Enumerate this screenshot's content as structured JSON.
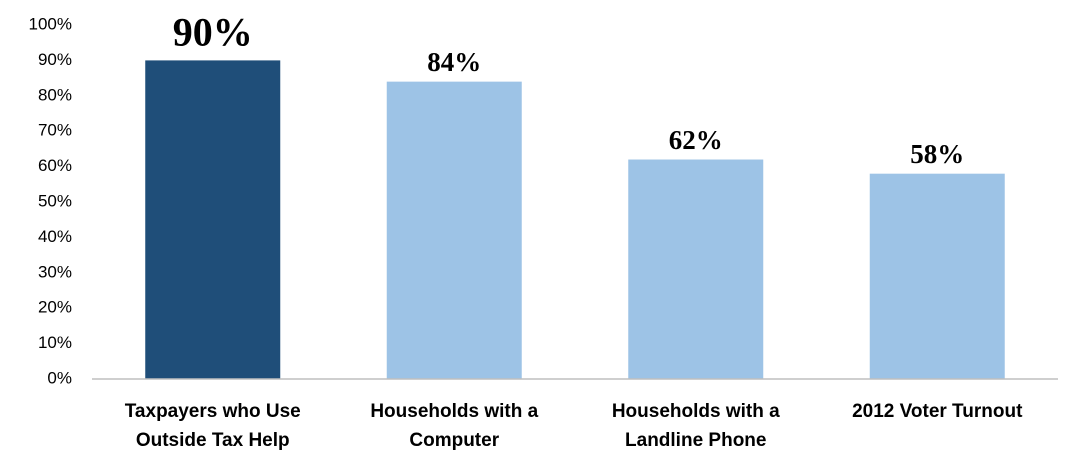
{
  "chart_data": {
    "type": "bar",
    "categories": [
      "Taxpayers who Use Outside Tax Help",
      "Households with a Computer",
      "Households with a Landline Phone",
      "2012 Voter Turnout"
    ],
    "values": [
      90,
      84,
      62,
      58
    ],
    "value_labels": [
      "90%",
      "84%",
      "62%",
      "58%"
    ],
    "colors": [
      "#1f4e79",
      "#9dc3e6",
      "#9dc3e6",
      "#9dc3e6"
    ],
    "ylim": [
      0,
      100
    ],
    "yticks": [
      {
        "value": 0,
        "label": "0%"
      },
      {
        "value": 10,
        "label": "10%"
      },
      {
        "value": 20,
        "label": "20%"
      },
      {
        "value": 30,
        "label": "30%"
      },
      {
        "value": 40,
        "label": "40%"
      },
      {
        "value": 50,
        "label": "50%"
      },
      {
        "value": 60,
        "label": "60%"
      },
      {
        "value": 70,
        "label": "70%"
      },
      {
        "value": 80,
        "label": "80%"
      },
      {
        "value": 90,
        "label": "90%"
      },
      {
        "value": 100,
        "label": "100%"
      }
    ],
    "grid": false
  }
}
